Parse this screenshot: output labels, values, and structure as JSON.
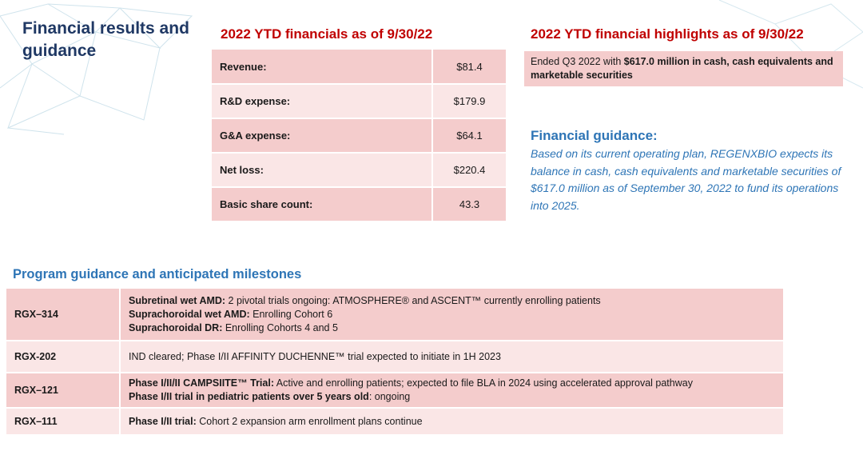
{
  "title": "Financial results and guidance",
  "financials": {
    "heading": "2022 YTD financials as of 9/30/22",
    "rows": [
      {
        "label": "Revenue:",
        "value": "$81.4"
      },
      {
        "label": "R&D expense:",
        "value": "$179.9"
      },
      {
        "label": "G&A expense:",
        "value": "$64.1"
      },
      {
        "label": "Net loss:",
        "value": "$220.4"
      },
      {
        "label": "Basic share count:",
        "value": "43.3"
      }
    ]
  },
  "highlights": {
    "heading": "2022 YTD financial highlights as of 9/30/22",
    "text_prefix": "Ended Q3 2022 with ",
    "text_bold": "$617.0 million in cash, cash equivalents and marketable securities"
  },
  "guidance": {
    "heading": "Financial guidance:",
    "body": "Based on its current operating plan, REGENXBIO expects its balance in cash, cash equivalents and marketable securities of $617.0 million as of September 30, 2022 to fund its operations into 2025."
  },
  "programs": {
    "heading": "Program guidance and anticipated milestones",
    "rows": [
      {
        "id": "RGX–314",
        "lines": [
          {
            "bold": "Subretinal wet AMD:",
            "text": " 2 pivotal trials ongoing: ATMOSPHERE® and ASCENT™ currently enrolling patients"
          },
          {
            "bold": "Suprachoroidal wet AMD:",
            "text": " Enrolling Cohort 6"
          },
          {
            "bold": "Suprachoroidal DR:",
            "text": " Enrolling Cohorts 4 and 5"
          }
        ]
      },
      {
        "id": "RGX-202",
        "lines": [
          {
            "bold": "",
            "text": "IND cleared; Phase I/II AFFINITY DUCHENNE™ trial expected to initiate in 1H 2023"
          }
        ]
      },
      {
        "id": "RGX–121",
        "lines": [
          {
            "bold": "Phase I/II/II CAMPSIITE™ Trial:",
            "text": " Active and enrolling patients; expected to file BLA in 2024 using accelerated approval pathway"
          },
          {
            "bold": "Phase I/II trial in pediatric patients over 5 years old",
            "text": ": ongoing"
          }
        ]
      },
      {
        "id": "RGX–111",
        "lines": [
          {
            "bold": "Phase I/II trial:",
            "text": " Cohort 2 expansion arm enrollment plans continue"
          }
        ]
      }
    ]
  },
  "colors": {
    "title": "#1f3864",
    "accent_red": "#c00000",
    "accent_blue": "#2e75b6",
    "row_dark": "#f4cccc",
    "row_light": "#fae6e6"
  }
}
